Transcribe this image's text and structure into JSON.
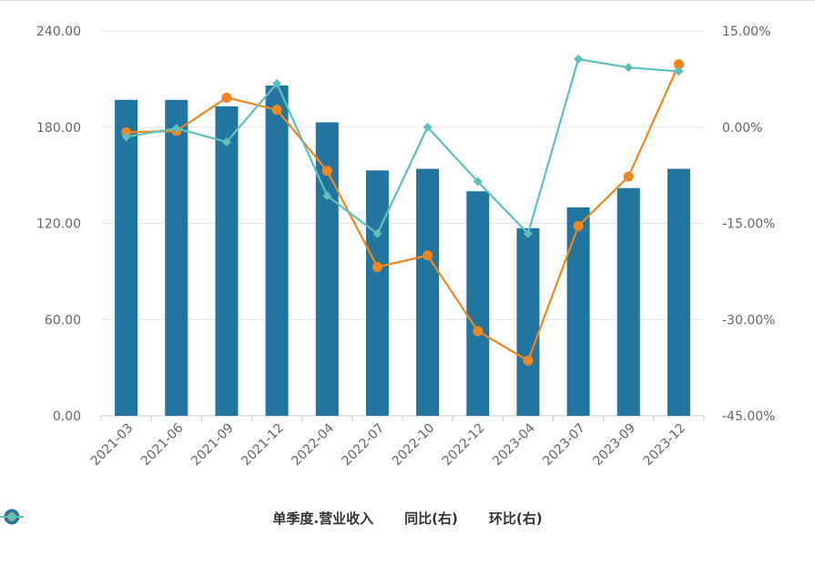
{
  "chart_data": {
    "type": "bar",
    "categories": [
      "2021-03",
      "2021-06",
      "2021-09",
      "2021-12",
      "2022-04",
      "2022-07",
      "2022-10",
      "2022-12",
      "2023-04",
      "2023-07",
      "2023-09",
      "2023-12"
    ],
    "series": [
      {
        "name": "单季度.营业收入",
        "kind": "bar",
        "axis": "left",
        "color": "#21759f",
        "values": [
          197,
          197,
          193,
          206,
          183,
          153,
          154,
          140,
          117,
          130,
          142,
          154
        ]
      },
      {
        "name": "同比(右)",
        "kind": "line",
        "axis": "right",
        "color": "#f0861e",
        "marker": "circle",
        "values": [
          -0.8,
          -0.6,
          4.6,
          2.7,
          -6.8,
          -21.8,
          -20.0,
          -31.8,
          -36.4,
          -15.4,
          -7.7,
          9.8
        ]
      },
      {
        "name": "环比(右)",
        "kind": "line",
        "axis": "right",
        "color": "#5fbfbd",
        "marker": "diamond",
        "values": [
          -1.5,
          -0.2,
          -2.3,
          6.8,
          -10.7,
          -16.6,
          0.0,
          -8.5,
          -16.6,
          10.6,
          9.3,
          8.7
        ]
      }
    ],
    "left_axis": {
      "ylim": [
        0,
        240
      ],
      "ticks": [
        "0.00",
        "60.00",
        "120.00",
        "180.00",
        "240.00"
      ]
    },
    "right_axis": {
      "ylim": [
        -45,
        15
      ],
      "ticks": [
        "-45.00%",
        "-30.00%",
        "-15.00%",
        "0.00%",
        "15.00%"
      ]
    },
    "grid": true,
    "legend_position": "bottom-center",
    "title": "",
    "xlabel": "",
    "ylabel": ""
  }
}
